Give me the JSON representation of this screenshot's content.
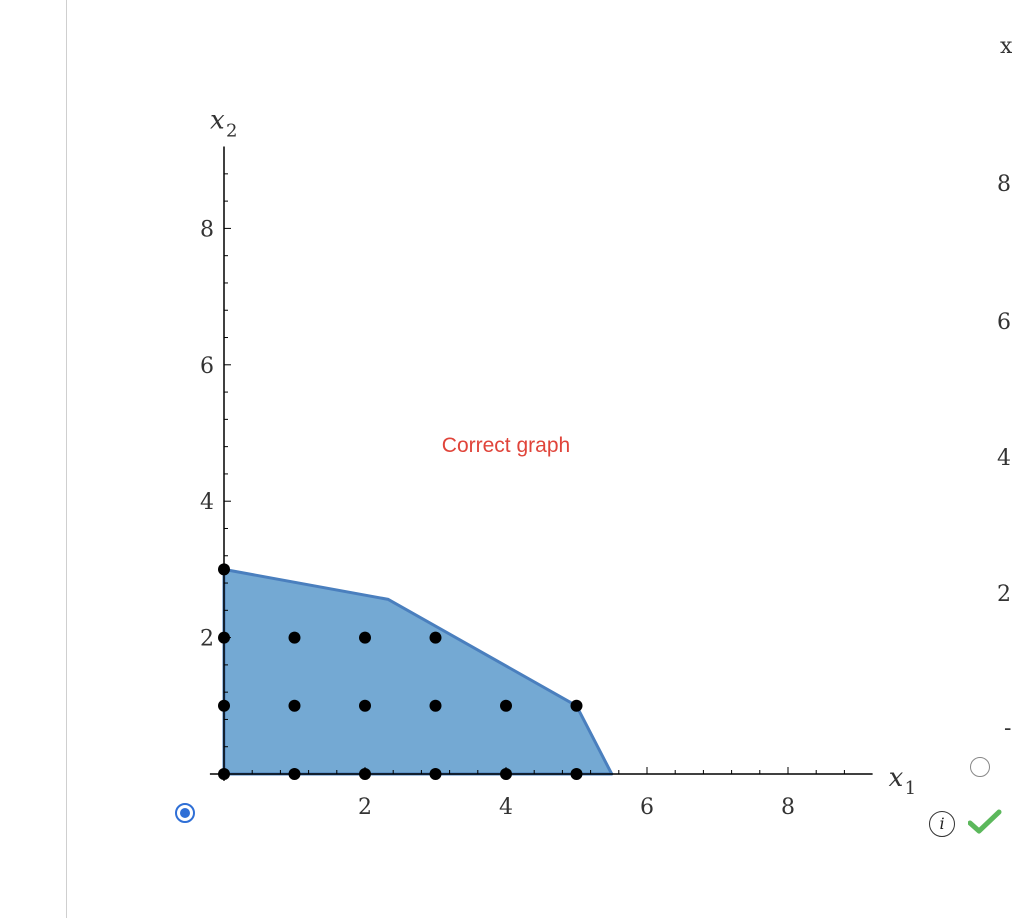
{
  "chart_data": {
    "type": "area",
    "xlabel": "x",
    "xlabel_sub": "1",
    "ylabel": "x",
    "ylabel_sub": "2",
    "xlim": [
      0,
      9.2
    ],
    "ylim": [
      0,
      9.2
    ],
    "x_ticks": [
      2,
      4,
      6,
      8
    ],
    "y_ticks": [
      2,
      4,
      6,
      8
    ],
    "region": [
      [
        0,
        0
      ],
      [
        0,
        3
      ],
      [
        2.33,
        2.56
      ],
      [
        5,
        1
      ],
      [
        5.5,
        0
      ]
    ],
    "points": [
      [
        0,
        0
      ],
      [
        1,
        0
      ],
      [
        2,
        0
      ],
      [
        3,
        0
      ],
      [
        4,
        0
      ],
      [
        5,
        0
      ],
      [
        0,
        1
      ],
      [
        1,
        1
      ],
      [
        2,
        1
      ],
      [
        3,
        1
      ],
      [
        4,
        1
      ],
      [
        5,
        1
      ],
      [
        0,
        2
      ],
      [
        1,
        2
      ],
      [
        2,
        2
      ],
      [
        3,
        2
      ],
      [
        0,
        3
      ]
    ],
    "annotation": "Correct graph",
    "region_color": "#74a9d3",
    "region_edge_color": "#4a7fbe",
    "point_color": "#000000",
    "annotation_color": "#e0443a",
    "grid": false
  },
  "options": {
    "selected_radio": "selected",
    "check_color": "#5cb85c",
    "info_icon": "info-icon",
    "check_icon": "check-icon"
  },
  "adjacent_chart": {
    "tick_labels": [
      "8",
      "6",
      "4",
      "2"
    ],
    "partial_axis_label": "x",
    "partial_tick": "-"
  }
}
